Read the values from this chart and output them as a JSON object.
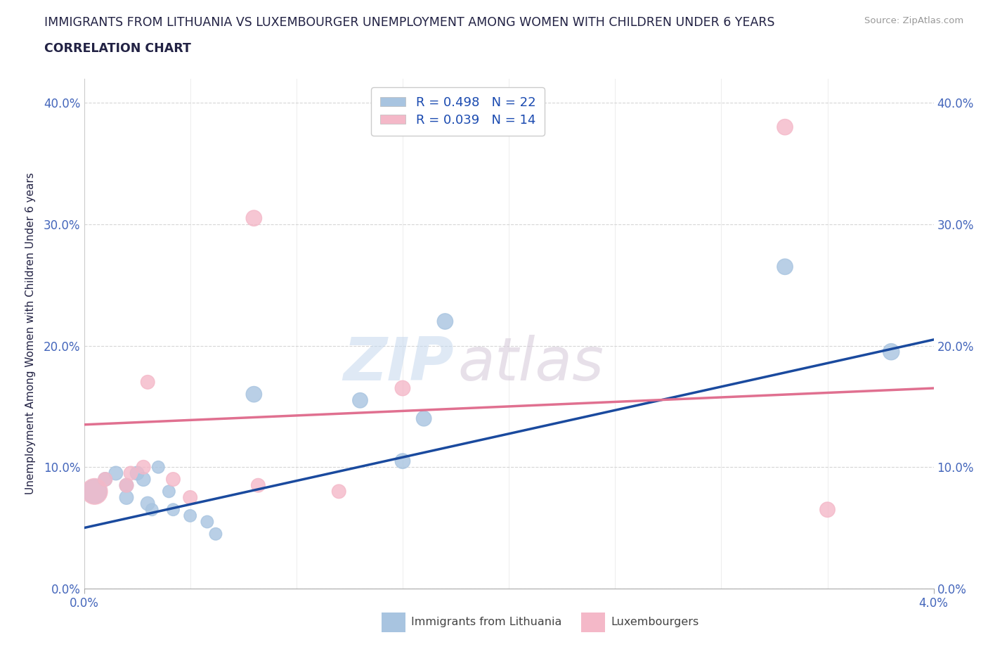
{
  "title_line1": "IMMIGRANTS FROM LITHUANIA VS LUXEMBOURGER UNEMPLOYMENT AMONG WOMEN WITH CHILDREN UNDER 6 YEARS",
  "title_line2": "CORRELATION CHART",
  "source": "Source: ZipAtlas.com",
  "ylabel": "Unemployment Among Women with Children Under 6 years",
  "xlim": [
    0.0,
    4.0
  ],
  "ylim": [
    0.0,
    42.0
  ],
  "xticks_show": [
    0.0,
    4.0
  ],
  "xticks_minor": [
    0.5,
    1.0,
    1.5,
    2.0,
    2.5,
    3.0,
    3.5
  ],
  "yticks": [
    0.0,
    10.0,
    20.0,
    30.0,
    40.0
  ],
  "blue_R": 0.498,
  "blue_N": 22,
  "pink_R": 0.039,
  "pink_N": 14,
  "blue_color": "#a8c4e0",
  "pink_color": "#f4b8c8",
  "blue_line_color": "#1a4a9e",
  "pink_line_color": "#e07090",
  "title_color": "#222244",
  "axis_color": "#4466bb",
  "legend_text_color": "#1a4ab0",
  "blue_points_x": [
    0.05,
    0.1,
    0.15,
    0.2,
    0.2,
    0.25,
    0.28,
    0.3,
    0.32,
    0.35,
    0.4,
    0.42,
    0.5,
    0.58,
    0.62,
    0.8,
    1.3,
    1.5,
    1.6,
    1.7,
    3.3,
    3.8
  ],
  "blue_points_y": [
    8.0,
    9.0,
    9.5,
    8.5,
    7.5,
    9.5,
    9.0,
    7.0,
    6.5,
    10.0,
    8.0,
    6.5,
    6.0,
    5.5,
    4.5,
    16.0,
    15.5,
    10.5,
    14.0,
    22.0,
    26.5,
    19.5
  ],
  "blue_sizes": [
    600,
    200,
    200,
    200,
    200,
    200,
    200,
    200,
    160,
    160,
    160,
    160,
    160,
    160,
    160,
    260,
    240,
    240,
    240,
    260,
    260,
    280
  ],
  "pink_points_x": [
    0.05,
    0.1,
    0.2,
    0.22,
    0.28,
    0.3,
    0.42,
    0.5,
    0.8,
    0.82,
    1.2,
    1.5,
    3.3,
    3.5
  ],
  "pink_points_y": [
    8.0,
    9.0,
    8.5,
    9.5,
    10.0,
    17.0,
    9.0,
    7.5,
    30.5,
    8.5,
    8.0,
    16.5,
    38.0,
    6.5
  ],
  "pink_sizes": [
    700,
    200,
    200,
    200,
    200,
    200,
    200,
    200,
    260,
    200,
    200,
    240,
    260,
    240
  ],
  "watermark_zip": "ZIP",
  "watermark_atlas": "atlas",
  "blue_trend_x": [
    0.0,
    4.0
  ],
  "blue_trend_y": [
    5.0,
    20.5
  ],
  "pink_trend_x": [
    0.0,
    4.0
  ],
  "pink_trend_y": [
    13.5,
    16.5
  ]
}
